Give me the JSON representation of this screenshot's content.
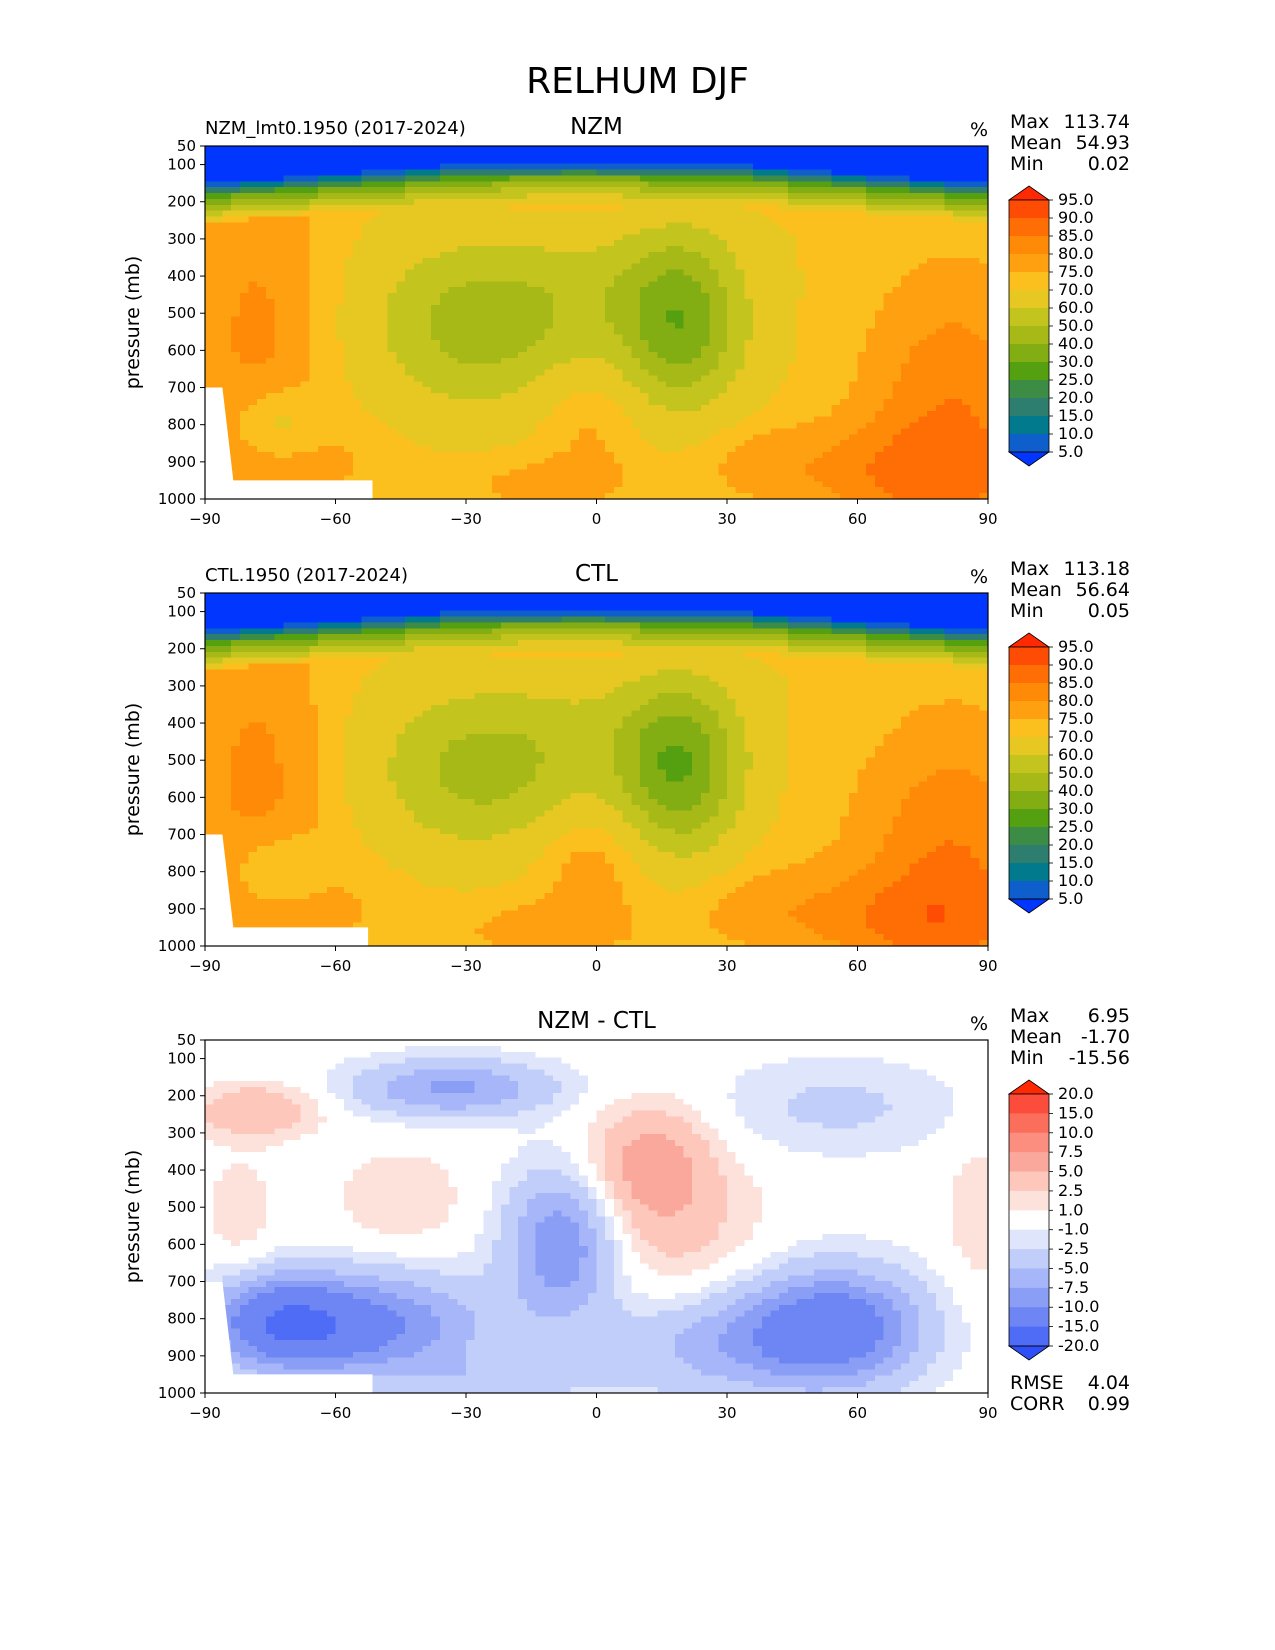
{
  "figure_title": "RELHUM DJF",
  "chart_data": [
    {
      "type": "heatmap",
      "subtype": "filled-contour",
      "title": "NZM",
      "case_label": "NZM_lmt0.1950 (2017-2024)",
      "units": "%",
      "xlabel": "",
      "ylabel": "pressure (mb)",
      "xlim": [
        -90,
        90
      ],
      "ylim": [
        1000,
        50
      ],
      "xticks": [
        "−90",
        "−60",
        "−30",
        "0",
        "30",
        "60",
        "90"
      ],
      "xtick_values": [
        -90,
        -60,
        -30,
        0,
        30,
        60,
        90
      ],
      "yticks": [
        "50",
        "100",
        "200",
        "300",
        "400",
        "500",
        "600",
        "700",
        "800",
        "900",
        "1000"
      ],
      "ytick_values": [
        50,
        100,
        200,
        300,
        400,
        500,
        600,
        700,
        800,
        900,
        1000
      ],
      "stats": [
        {
          "label": "Max",
          "value": "113.74"
        },
        {
          "label": "Mean",
          "value": "54.93"
        },
        {
          "label": "Min",
          "value": "0.02"
        }
      ],
      "colorbar": {
        "levels": [
          "95.0",
          "90.0",
          "85.0",
          "80.0",
          "75.0",
          "70.0",
          "60.0",
          "50.0",
          "40.0",
          "30.0",
          "25.0",
          "20.0",
          "15.0",
          "10.0",
          "5.0"
        ],
        "colors": [
          "#ff2a04",
          "#ff4c04",
          "#ff6e04",
          "#ff8a08",
          "#ffa010",
          "#fbbf1e",
          "#e7c823",
          "#c4c41e",
          "#a6b916",
          "#82ae14",
          "#55a011",
          "#3c8c46",
          "#2e7e70",
          "#027a8d",
          "#0e5fcb",
          "#0036ff"
        ]
      },
      "field": "rh"
    },
    {
      "type": "heatmap",
      "subtype": "filled-contour",
      "title": "CTL",
      "case_label": "CTL.1950 (2017-2024)",
      "units": "%",
      "xlabel": "",
      "ylabel": "pressure (mb)",
      "xlim": [
        -90,
        90
      ],
      "ylim": [
        1000,
        50
      ],
      "xticks": [
        "−90",
        "−60",
        "−30",
        "0",
        "30",
        "60",
        "90"
      ],
      "xtick_values": [
        -90,
        -60,
        -30,
        0,
        30,
        60,
        90
      ],
      "yticks": [
        "50",
        "100",
        "200",
        "300",
        "400",
        "500",
        "600",
        "700",
        "800",
        "900",
        "1000"
      ],
      "ytick_values": [
        50,
        100,
        200,
        300,
        400,
        500,
        600,
        700,
        800,
        900,
        1000
      ],
      "stats": [
        {
          "label": "Max",
          "value": "113.18"
        },
        {
          "label": "Mean",
          "value": "56.64"
        },
        {
          "label": "Min",
          "value": "0.05"
        }
      ],
      "colorbar": {
        "levels": [
          "95.0",
          "90.0",
          "85.0",
          "80.0",
          "75.0",
          "70.0",
          "60.0",
          "50.0",
          "40.0",
          "30.0",
          "25.0",
          "20.0",
          "15.0",
          "10.0",
          "5.0"
        ],
        "colors": [
          "#ff2a04",
          "#ff4c04",
          "#ff6e04",
          "#ff8a08",
          "#ffa010",
          "#fbbf1e",
          "#e7c823",
          "#c4c41e",
          "#a6b916",
          "#82ae14",
          "#55a011",
          "#3c8c46",
          "#2e7e70",
          "#027a8d",
          "#0e5fcb",
          "#0036ff"
        ]
      },
      "field": "rh"
    },
    {
      "type": "heatmap",
      "subtype": "filled-contour",
      "title": "NZM - CTL",
      "case_label": "",
      "units": "%",
      "xlabel": "",
      "ylabel": "pressure (mb)",
      "xlim": [
        -90,
        90
      ],
      "ylim": [
        1000,
        50
      ],
      "xticks": [
        "−90",
        "−60",
        "−30",
        "0",
        "30",
        "60",
        "90"
      ],
      "xtick_values": [
        -90,
        -60,
        -30,
        0,
        30,
        60,
        90
      ],
      "yticks": [
        "50",
        "100",
        "200",
        "300",
        "400",
        "500",
        "600",
        "700",
        "800",
        "900",
        "1000"
      ],
      "ytick_values": [
        50,
        100,
        200,
        300,
        400,
        500,
        600,
        700,
        800,
        900,
        1000
      ],
      "stats": [
        {
          "label": "Max",
          "value": "6.95"
        },
        {
          "label": "Mean",
          "value": "-1.70"
        },
        {
          "label": "Min",
          "value": "-15.56"
        }
      ],
      "extra_stats": [
        {
          "label": "RMSE",
          "value": "4.04"
        },
        {
          "label": "CORR",
          "value": "0.99"
        }
      ],
      "colorbar": {
        "levels": [
          "20.0",
          "15.0",
          "10.0",
          "7.5",
          "5.0",
          "2.5",
          "1.0",
          "-1.0",
          "-2.5",
          "-5.0",
          "-7.5",
          "-10.0",
          "-15.0",
          "-20.0"
        ],
        "colors": [
          "#ff2a04",
          "#fc4d3c",
          "#fb6e5c",
          "#fb8e7f",
          "#fba89c",
          "#fdc7bc",
          "#fde2dc",
          "#ffffff",
          "#dfe6fc",
          "#c2cefa",
          "#a6b6f8",
          "#8a9ef6",
          "#6e86f4",
          "#4f6cf6",
          "#2f50f8",
          "#0e34fb"
        ]
      },
      "field": "diff"
    }
  ]
}
